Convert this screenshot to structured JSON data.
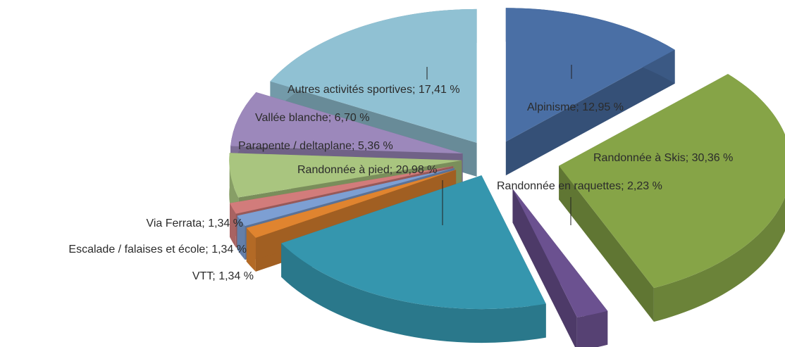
{
  "chart_data": {
    "type": "pie3d",
    "categories": [
      "Alpinisme",
      "Randonnée à Skis",
      "Randonnée en raquettes",
      "Randonnée à pied",
      "VTT",
      "Escalade / falaises et école",
      "Via Ferrata",
      "Parapente / deltaplane",
      "Vallée blanche",
      "Autres activités sportives"
    ],
    "values": [
      12.95,
      30.36,
      2.23,
      20.98,
      1.34,
      1.34,
      1.34,
      5.36,
      6.7,
      17.41
    ],
    "value_labels": [
      "12,95 %",
      "30,36 %",
      "2,23 %",
      "20,98 %",
      "1,34 %",
      "1,34 %",
      "1,34 %",
      "5,36 %",
      "6,70 %",
      "17,41 %"
    ],
    "label_separator": "; ",
    "colors": [
      "#4a6fa5",
      "#86a447",
      "#6b5190",
      "#3596ae",
      "#e0842f",
      "#7d9fd3",
      "#d27c7b",
      "#a9c57f",
      "#9c88bb",
      "#90c1d3"
    ]
  }
}
